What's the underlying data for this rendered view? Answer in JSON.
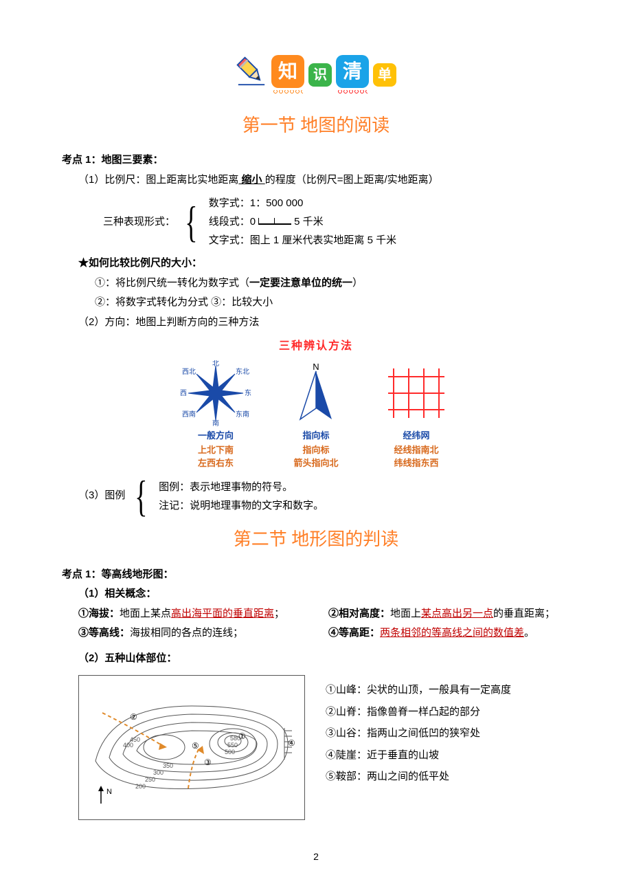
{
  "banner": {
    "tiles": [
      {
        "text": "知",
        "bg": "#ff8a1e",
        "cls": "tile underline-wavy",
        "wavyColor": "#ff8a1e"
      },
      {
        "text": "识",
        "bg": "#3bb44a",
        "cls": "tile tile-mini"
      },
      {
        "text": "清",
        "bg": "#1aa3e8",
        "cls": "tile underline-wavy",
        "wavyColor": "#ff2a2a"
      },
      {
        "text": "单",
        "bg": "#ffc107",
        "cls": "tile tile-mini"
      }
    ],
    "pencil_colors": {
      "body": "#ffd54f",
      "tip": "#f5deb3",
      "lead": "#444",
      "eraser": "#ff5c5c",
      "band": "#9e9e9e",
      "outline": "#1a4aa8"
    }
  },
  "s1": {
    "title": "第一节  地图的阅读",
    "title_color": "#ff7f27",
    "kaopoint": "考点 1：地图三要素：",
    "p1_a": "（1）比例尺：图上距离比实地距离",
    "p1_blank": "  缩小  ",
    "p1_b": "的程度（比例尺=图上距离/实地距离）",
    "forms_label": "三种表现形式：",
    "form1": "数字式：1：500 000",
    "form2a": "线段式：",
    "form2_v0": "0",
    "form2_v1": "5 千米",
    "form3": "文字式：图上 1 厘米代表实地距离 5 千米",
    "compare_title": "★如何比较比例尺的大小：",
    "c1a": "①：将比例尺统一转化为数字式（",
    "c1b": "一定要注意单位的统一",
    "c1c": "）",
    "c2": "②：将数字式转化为分式        ③：比较大小",
    "p2": "（2）方向：地图上判断方向的三种方法",
    "methods": {
      "title": "三种辨认方法",
      "compass": {
        "name": "一般方向",
        "sub1": "上北下南",
        "sub2": "左西右东",
        "dirs": {
          "n": "北",
          "ne": "东北",
          "e": "东",
          "se": "东南",
          "s": "南",
          "sw": "西南",
          "w": "西",
          "nw": "西北"
        },
        "color": "#1a4aa8"
      },
      "arrow": {
        "name": "指向标",
        "sub1": "指向标",
        "sub2": "箭头指向北",
        "N": "N",
        "fill": "#1a4aa8"
      },
      "grid": {
        "name": "经纬网",
        "sub1": "经线指南北",
        "sub2": "纬线指东西",
        "color": "#ff2a2a"
      }
    },
    "legend_label": "（3）图例",
    "legend1": "图例：表示地理事物的符号。",
    "legend2": "注记：说明地理事物的文字和数字。"
  },
  "s2": {
    "title": "第二节  地形图的判读",
    "title_color": "#ff7f27",
    "kaopoint": "考点 1：等高线地形图：",
    "h1": "（1）相关概念：",
    "defs": {
      "d1a": "①海拔：",
      "d1b": "地面上某点",
      "d1c": "高出海平面的垂直距离",
      "d1d": "；",
      "d2a": "②相对高度：",
      "d2b": "地面上",
      "d2c": "某点高出另一点",
      "d2d": "的垂直距离；",
      "d3a": "③等高线：",
      "d3b": "海拔相同的各点的连线；",
      "d4a": "④等高距：",
      "d4b": "两条相邻的等高线之间的数值差",
      "d4c": "。"
    },
    "h2": "（2）五种山体部位：",
    "contour_labels": [
      "200",
      "250",
      "300",
      "350",
      "400",
      "450",
      "500",
      "550",
      "580"
    ],
    "contour_marks": [
      "①",
      "②",
      "③",
      "④",
      "⑤"
    ],
    "north": "N",
    "mountain": {
      "m1": "①山峰：尖状的山顶，一般具有一定高度",
      "m2": "②山脊：指像兽脊一样凸起的部分",
      "m3": "③山谷：指两山之间低凹的狭窄处",
      "m4": "④陡崖：近于垂直的山坡",
      "m5": "⑤鞍部：两山之间的低平处"
    }
  },
  "pagenum": "2"
}
